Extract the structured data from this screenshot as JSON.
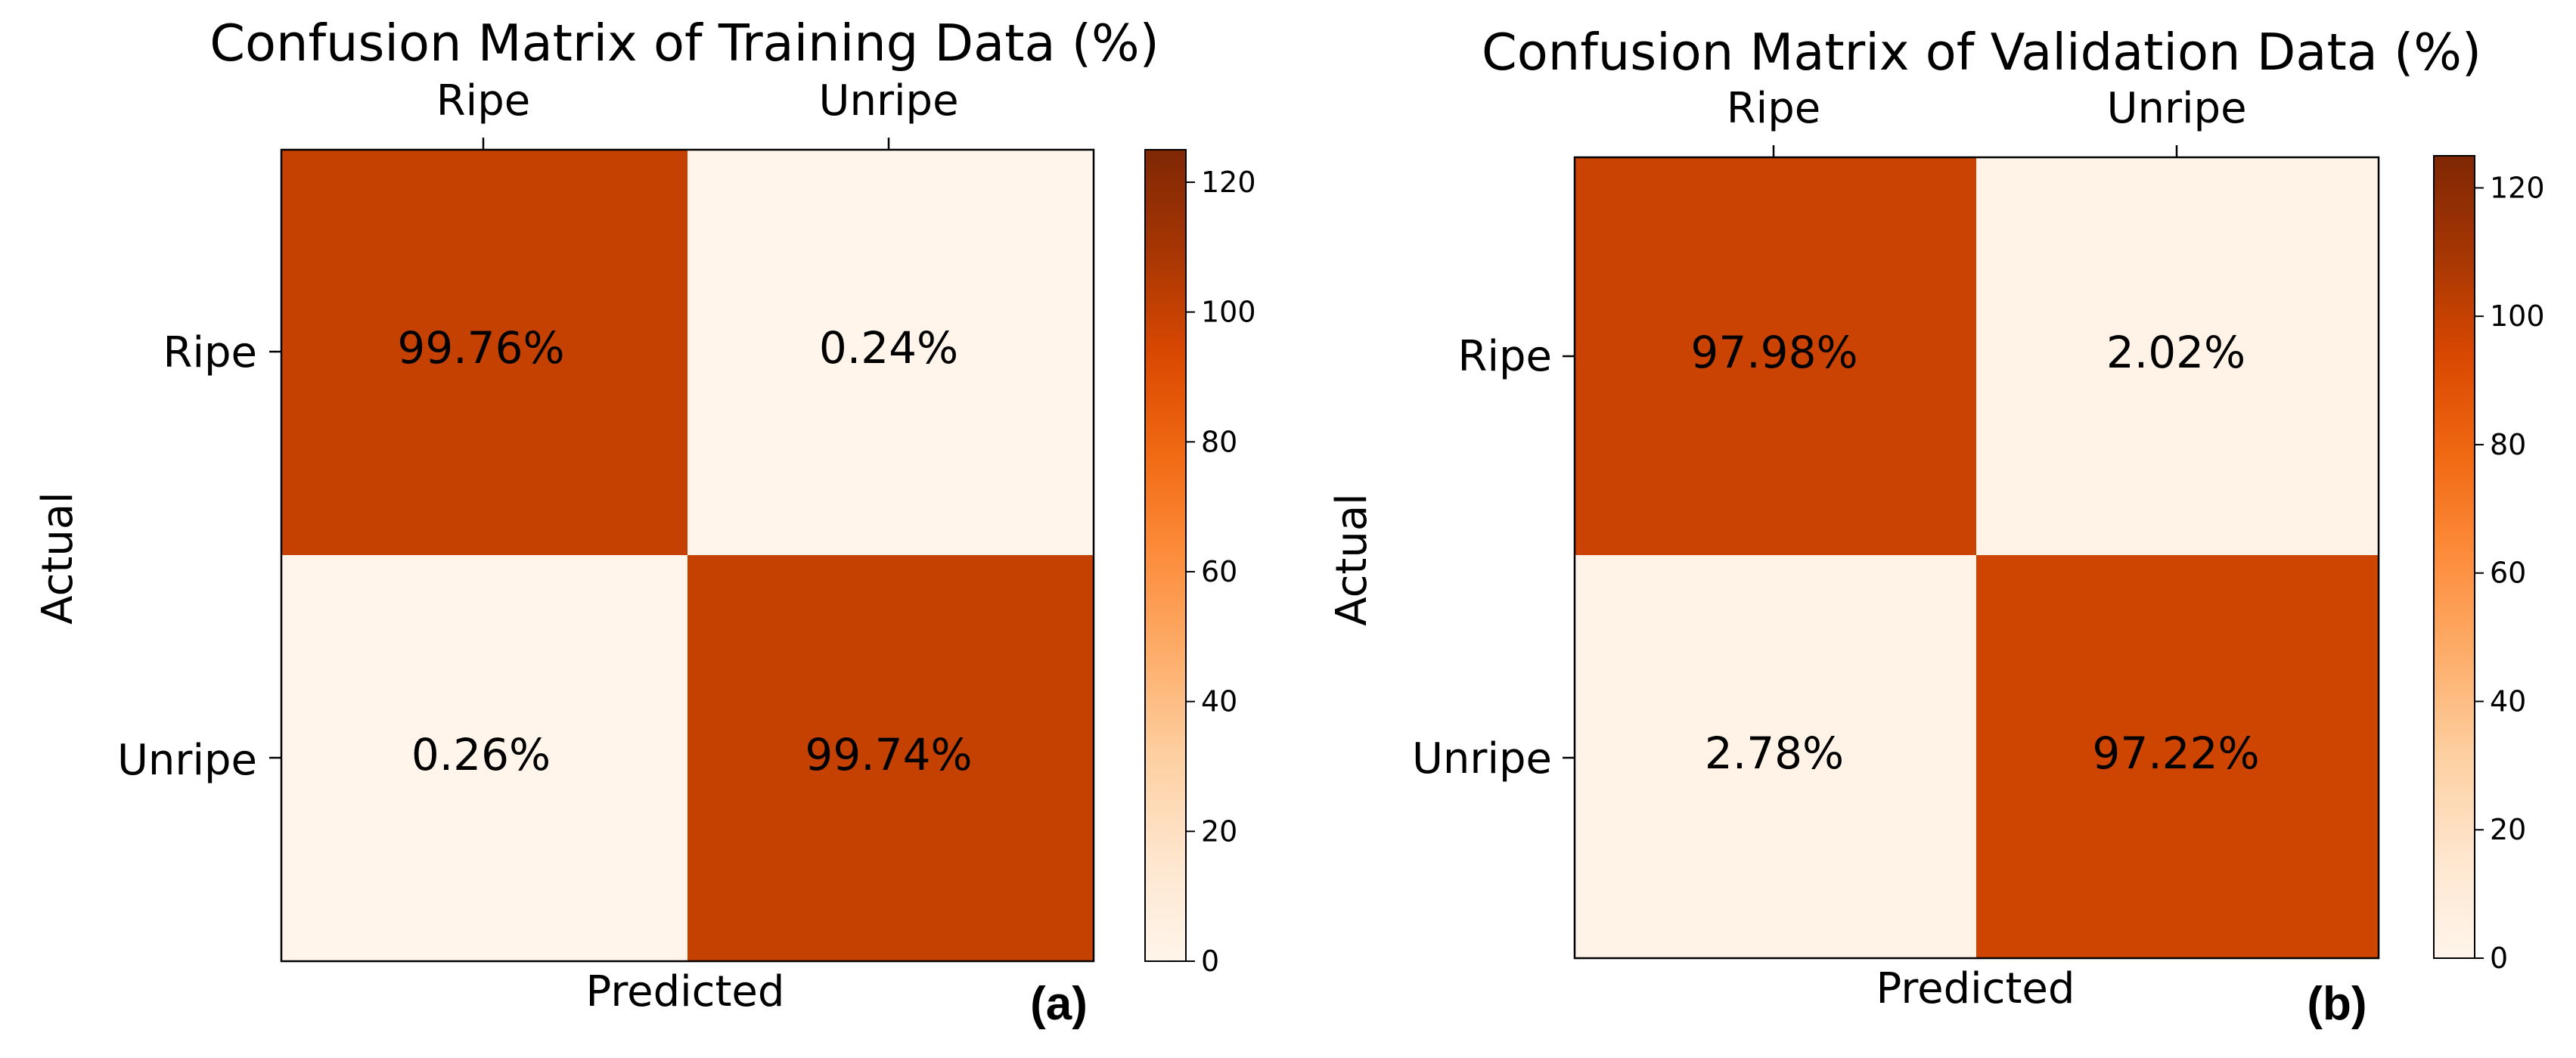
{
  "colors": {
    "scale": [
      "#fff5eb",
      "#fee6ce",
      "#fdd0a2",
      "#fdae6b",
      "#fd8d3c",
      "#f16913",
      "#d94801",
      "#a63603",
      "#7f2704"
    ]
  },
  "chart_data": [
    {
      "type": "heatmap",
      "title": "Confusion Matrix of Training Data (%)",
      "xlabel": "Predicted",
      "ylabel": "Actual",
      "x_categories": [
        "Ripe",
        "Unripe"
      ],
      "y_categories": [
        "Ripe",
        "Unripe"
      ],
      "values": [
        [
          99.76,
          0.24
        ],
        [
          0.26,
          99.74
        ]
      ],
      "cell_labels": [
        [
          "99.76%",
          "0.24%"
        ],
        [
          "0.26%",
          "99.74%"
        ]
      ],
      "colorbar": {
        "min": 0,
        "max": 125,
        "ticks": [
          "0",
          "20",
          "40",
          "60",
          "80",
          "100",
          "120"
        ]
      },
      "panel_label": "(a)"
    },
    {
      "type": "heatmap",
      "title": "Confusion Matrix of Validation Data (%)",
      "xlabel": "Predicted",
      "ylabel": "Actual",
      "x_categories": [
        "Ripe",
        "Unripe"
      ],
      "y_categories": [
        "Ripe",
        "Unripe"
      ],
      "values": [
        [
          97.98,
          2.02
        ],
        [
          2.78,
          97.22
        ]
      ],
      "cell_labels": [
        [
          "97.98%",
          "2.02%"
        ],
        [
          "2.78%",
          "97.22%"
        ]
      ],
      "colorbar": {
        "min": 0,
        "max": 125,
        "ticks": [
          "0",
          "20",
          "40",
          "60",
          "80",
          "100",
          "120"
        ]
      },
      "panel_label": "(b)"
    }
  ]
}
